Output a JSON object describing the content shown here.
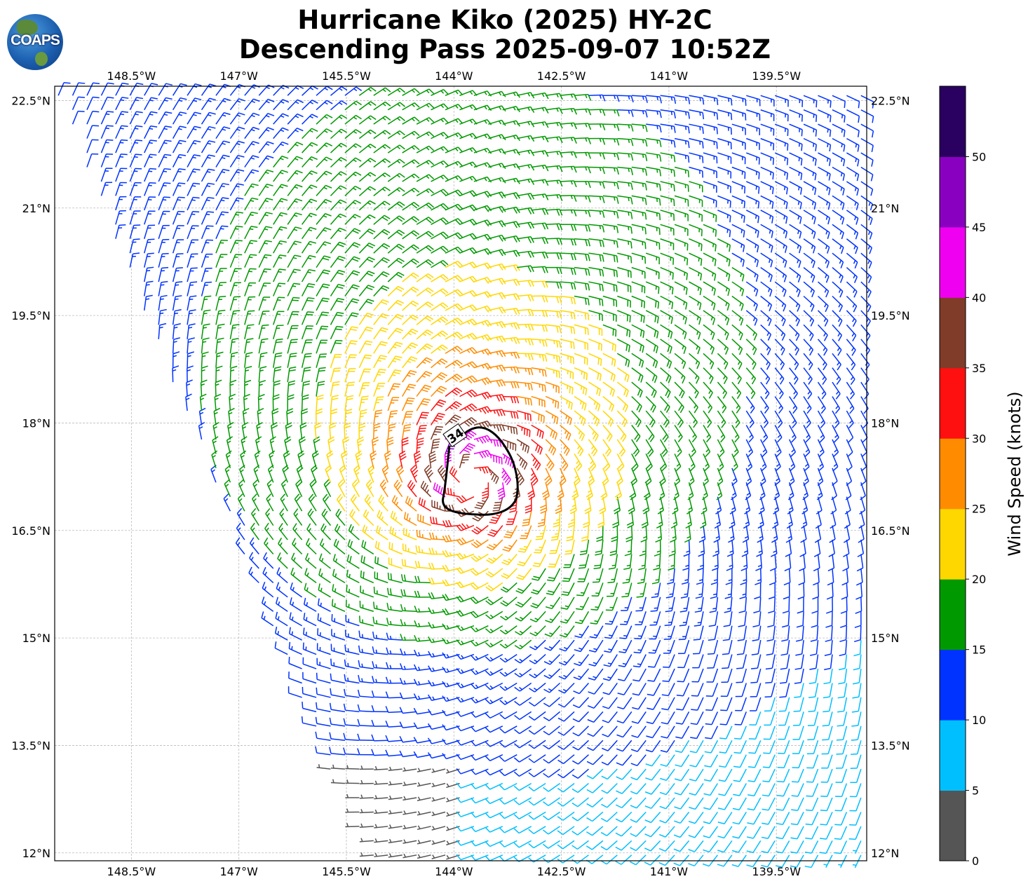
{
  "title": {
    "line1": "Hurricane Kiko (2025) HY-2C",
    "line2": "Descending Pass 2025-09-07 10:52Z"
  },
  "logo": {
    "text": "COAPS"
  },
  "map": {
    "lon_ticks": [
      -148.5,
      -147,
      -145.5,
      -144,
      -142.5,
      -141,
      -139.5
    ],
    "lon_tick_labels": [
      "148.5°W",
      "147°W",
      "145.5°W",
      "144°W",
      "142.5°W",
      "141°W",
      "139.5°W"
    ],
    "lat_ticks": [
      22.5,
      21,
      19.5,
      18,
      16.5,
      15,
      13.5,
      12
    ],
    "lat_tick_labels": [
      "22.5°N",
      "21°N",
      "19.5°N",
      "18°N",
      "16.5°N",
      "15°N",
      "13.5°N",
      "12°N"
    ],
    "lon_range": [
      -149.57,
      -138.24
    ],
    "lat_range": [
      11.89,
      22.7
    ],
    "grid": true,
    "contour_label": "34"
  },
  "wind_field": {
    "center_lon": -143.75,
    "center_lat": 17.25,
    "max_wind_kt": 44,
    "rmw_deg": 0.45,
    "decay_exponent": 0.5,
    "spacing_deg": 0.2,
    "units": "knots"
  },
  "colorbar": {
    "label": "Wind Speed (knots)",
    "bounds": [
      0,
      5,
      10,
      15,
      20,
      25,
      30,
      35,
      40,
      45,
      50,
      55
    ],
    "tick_labels": [
      "0",
      "5",
      "10",
      "15",
      "20",
      "25",
      "30",
      "35",
      "40",
      "45",
      "50"
    ],
    "colors": [
      "#555555",
      "#00bfff",
      "#0033ff",
      "#009900",
      "#ffd700",
      "#ff8c00",
      "#ff1010",
      "#803c28",
      "#f000f0",
      "#8a00c0",
      "#2a0060"
    ]
  }
}
